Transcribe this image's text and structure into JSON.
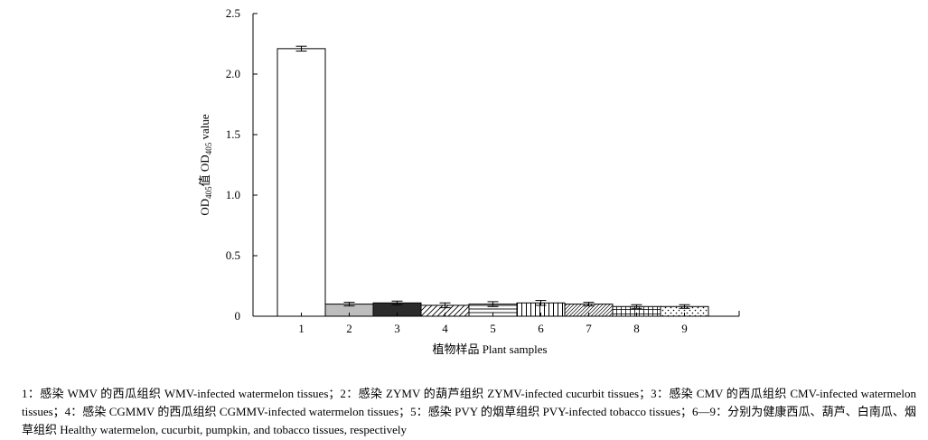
{
  "chart_data": {
    "type": "bar",
    "categories": [
      "1",
      "2",
      "3",
      "4",
      "5",
      "6",
      "7",
      "8",
      "9"
    ],
    "values": [
      2.21,
      0.1,
      0.11,
      0.09,
      0.1,
      0.11,
      0.1,
      0.08,
      0.08
    ],
    "errors": [
      0.02,
      0.015,
      0.015,
      0.02,
      0.02,
      0.02,
      0.015,
      0.015,
      0.015
    ],
    "patterns": [
      "none",
      "light-gray",
      "dark-gray",
      "diagonal-hatch",
      "horizontal-lines",
      "vertical-lines",
      "diagonal-hatch-fine",
      "grid",
      "dots"
    ],
    "title": "",
    "xlabel": "植物样品 Plant samples",
    "ylabel": {
      "prefix": "OD",
      "subscript": "405",
      "middle": "值 OD",
      "subscript2": "405",
      "suffix": " value"
    },
    "ylim": [
      0,
      2.5
    ],
    "yticks": [
      {
        "value": 0,
        "label": "0"
      },
      {
        "value": 0.5,
        "label": "0.5"
      },
      {
        "value": 1.0,
        "label": "1.0"
      },
      {
        "value": 1.5,
        "label": "1.5"
      },
      {
        "value": 2.0,
        "label": "2.0"
      },
      {
        "value": 2.5,
        "label": "2.5"
      }
    ],
    "grid": false,
    "legend": "none"
  },
  "caption": {
    "text": "1：感染 WMV 的西瓜组织 WMV-infected watermelon tissues；2：感染 ZYMV 的葫芦组织 ZYMV-infected cucurbit tissues；3：感染 CMV 的西瓜组织 CMV-infected watermelon tissues；4：感染 CGMMV 的西瓜组织 CGMMV-infected watermelon tissues；5：感染 PVY 的烟草组织 PVY-infected tobacco tissues；6—9：分别为健康西瓜、葫芦、白南瓜、烟草组织 Healthy watermelon, cucurbit, pumpkin, and tobacco tissues, respectively"
  }
}
